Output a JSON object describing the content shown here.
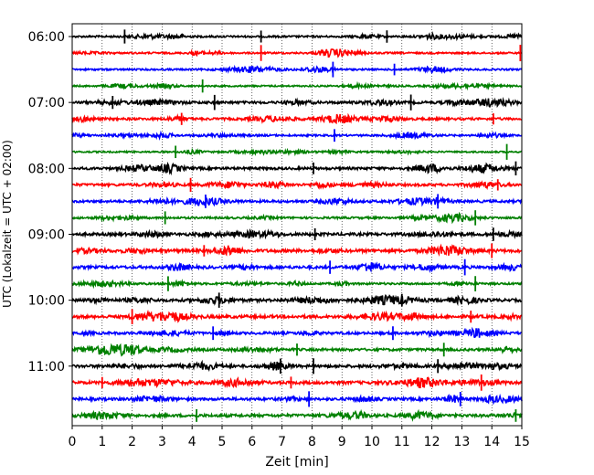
{
  "chart_data": {
    "type": "line",
    "title": "",
    "xlabel": "Zeit  [min]",
    "ylabel": "UTC (Lokalzeit = UTC + 02:00)",
    "xlim": [
      0,
      15
    ],
    "x_ticks": [
      "0",
      "1",
      "2",
      "3",
      "4",
      "5",
      "6",
      "7",
      "8",
      "9",
      "10",
      "11",
      "12",
      "13",
      "14",
      "15"
    ],
    "y_ticks": [
      "06:00",
      "07:00",
      "08:00",
      "09:00",
      "10:00",
      "11:00"
    ],
    "grid": "vertical dotted at each minute",
    "trace_interval_min": 15,
    "colors": [
      "#000000",
      "#ff0000",
      "#0000ff",
      "#008000"
    ],
    "traces": [
      {
        "start": "06:00",
        "color": "#000000",
        "amplitude": 0.6,
        "spikes": [
          1.75,
          6.3,
          10.5
        ]
      },
      {
        "start": "06:15",
        "color": "#ff0000",
        "amplitude": 0.55,
        "spikes": [
          6.3,
          14.95
        ]
      },
      {
        "start": "06:30",
        "color": "#0000ff",
        "amplitude": 0.55,
        "spikes": [
          8.7,
          10.75
        ]
      },
      {
        "start": "06:45",
        "color": "#008000",
        "amplitude": 0.5,
        "spikes": [
          4.35
        ]
      },
      {
        "start": "07:00",
        "color": "#000000",
        "amplitude": 0.8,
        "spikes": [
          1.35,
          4.75,
          11.3
        ]
      },
      {
        "start": "07:15",
        "color": "#ff0000",
        "amplitude": 0.75,
        "spikes": [
          3.65,
          14.05
        ]
      },
      {
        "start": "07:30",
        "color": "#0000ff",
        "amplitude": 0.6,
        "spikes": [
          8.75
        ]
      },
      {
        "start": "07:45",
        "color": "#008000",
        "amplitude": 0.5,
        "spikes": [
          3.45,
          14.5
        ]
      },
      {
        "start": "08:00",
        "color": "#000000",
        "amplitude": 0.8,
        "spikes": [
          8.05,
          14.8
        ]
      },
      {
        "start": "08:15",
        "color": "#ff0000",
        "amplitude": 0.8,
        "spikes": [
          3.95,
          14.2
        ]
      },
      {
        "start": "08:30",
        "color": "#0000ff",
        "amplitude": 0.8,
        "spikes": [
          4.45,
          12.2
        ]
      },
      {
        "start": "08:45",
        "color": "#008000",
        "amplitude": 0.65,
        "spikes": [
          3.1,
          13.45
        ]
      },
      {
        "start": "09:00",
        "color": "#000000",
        "amplitude": 0.9,
        "spikes": [
          8.1,
          14.05
        ]
      },
      {
        "start": "09:15",
        "color": "#ff0000",
        "amplitude": 1.0,
        "spikes": [
          4.4,
          14.0
        ]
      },
      {
        "start": "09:30",
        "color": "#0000ff",
        "amplitude": 0.9,
        "spikes": [
          8.6,
          13.1
        ]
      },
      {
        "start": "09:45",
        "color": "#008000",
        "amplitude": 0.65,
        "spikes": [
          3.2,
          13.45
        ]
      },
      {
        "start": "10:00",
        "color": "#000000",
        "amplitude": 0.9,
        "spikes": [
          4.9,
          11.0
        ]
      },
      {
        "start": "10:15",
        "color": "#ff0000",
        "amplitude": 0.95,
        "spikes": [
          2.0,
          13.3
        ]
      },
      {
        "start": "10:30",
        "color": "#0000ff",
        "amplitude": 0.8,
        "spikes": [
          4.7,
          10.7
        ]
      },
      {
        "start": "10:45",
        "color": "#008000",
        "amplitude": 0.8,
        "spikes": [
          7.5,
          12.4
        ]
      },
      {
        "start": "11:00",
        "color": "#000000",
        "amplitude": 0.9,
        "spikes": [
          6.95,
          8.05,
          12.2
        ]
      },
      {
        "start": "11:15",
        "color": "#ff0000",
        "amplitude": 0.95,
        "spikes": [
          1.0,
          7.3,
          13.65
        ]
      },
      {
        "start": "11:30",
        "color": "#0000ff",
        "amplitude": 0.85,
        "spikes": [
          7.9,
          12.95
        ]
      },
      {
        "start": "11:45",
        "color": "#008000",
        "amplitude": 0.9,
        "spikes": [
          4.15,
          14.8
        ]
      }
    ]
  }
}
